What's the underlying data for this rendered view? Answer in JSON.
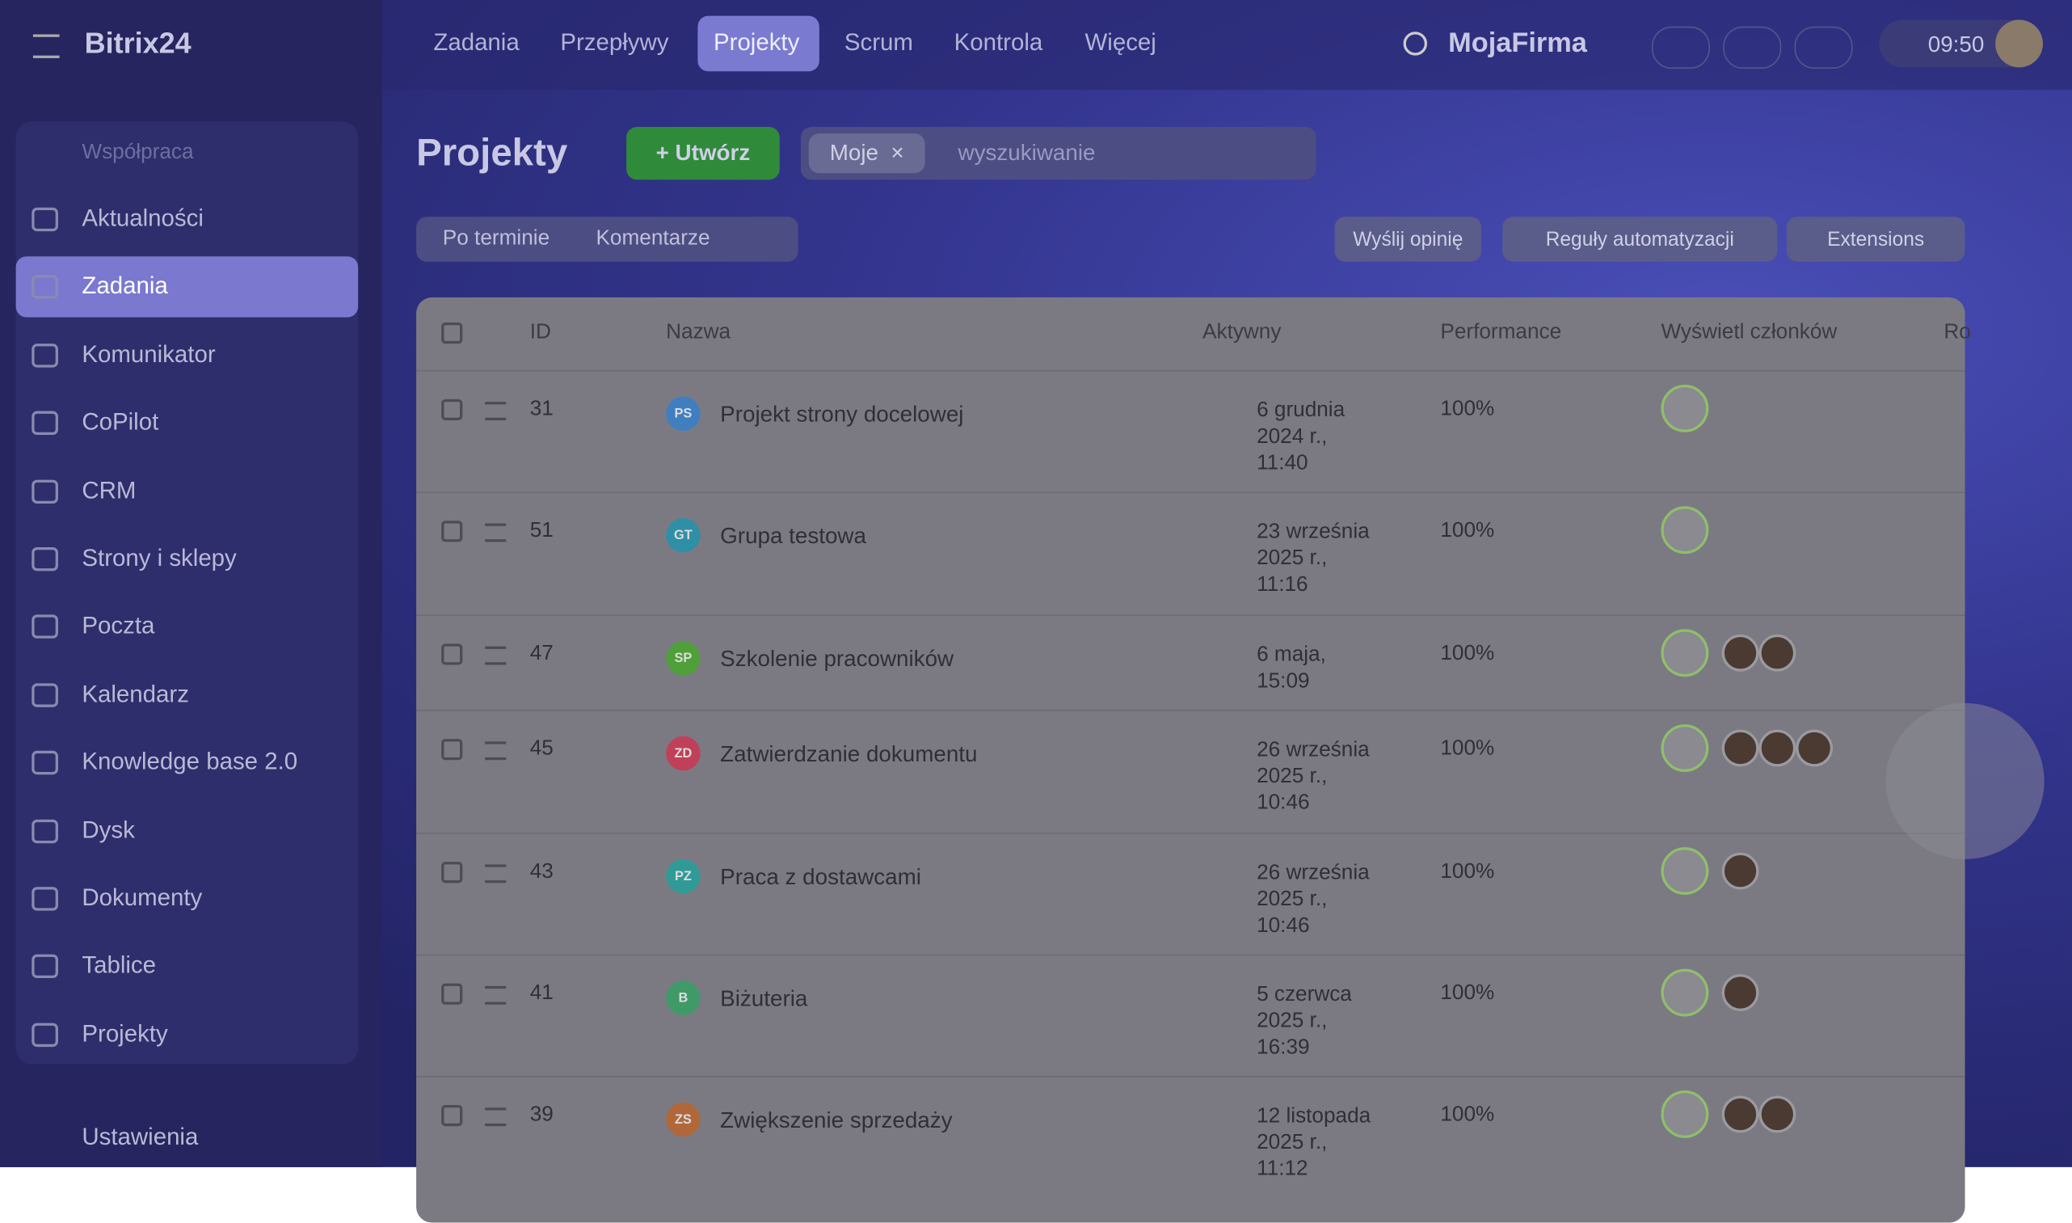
{
  "topbar": {
    "logo": "Bitrix24",
    "nav": [
      "Zadania",
      "Przepływy",
      "Projekty",
      "Scrum",
      "Kontrola",
      "Więcej"
    ],
    "active_nav": 2,
    "company": "MojaFirma",
    "time": "09:50"
  },
  "sidebar": {
    "section": "Współpraca",
    "items": [
      "Aktualności",
      "Zadania",
      "Komunikator",
      "CoPilot",
      "CRM",
      "Strony i sklepy",
      "Poczta",
      "Kalendarz",
      "Knowledge base 2.0",
      "Dysk",
      "Dokumenty",
      "Tablice",
      "Projekty"
    ],
    "active_item": 1,
    "settings": "Ustawienia"
  },
  "header": {
    "title": "Projekty",
    "create_button": "Utwórz",
    "filter_chip": "Moje",
    "search_placeholder": "wyszukiwanie"
  },
  "toolbar": {
    "left": [
      "Po terminie",
      "Komentarze"
    ],
    "right": [
      "Wyślij opinię",
      "Reguły automatyzacji",
      "Extensions"
    ]
  },
  "table": {
    "columns": [
      "ID",
      "Nazwa",
      "Aktywny",
      "Performance",
      "Wyświetl członków",
      "Ro"
    ],
    "rows": [
      {
        "id": "31",
        "badge": "PS",
        "badge_color": "#3f7fc0",
        "name": "Projekt strony docelowej",
        "active": "6 grudnia 2024 r., 11:40",
        "performance": "100%"
      },
      {
        "id": "51",
        "badge": "GT",
        "badge_color": "#2f8fa6",
        "name": "Grupa testowa",
        "active": "23 września 2025 r., 11:16",
        "performance": "100%"
      },
      {
        "id": "47",
        "badge": "SP",
        "badge_color": "#4f9f3a",
        "name": "Szkolenie pracowników",
        "active": "6 maja, 15:09",
        "performance": "100%"
      },
      {
        "id": "45",
        "badge": "ZD",
        "badge_color": "#c0405a",
        "name": "Zatwierdzanie dokumentu",
        "active": "26 września 2025 r., 10:46",
        "performance": "100%"
      },
      {
        "id": "43",
        "badge": "PZ",
        "badge_color": "#2f9a96",
        "name": "Praca z dostawcami",
        "active": "26 września 2025 r., 10:46",
        "performance": "100%"
      },
      {
        "id": "41",
        "badge": "B",
        "badge_color": "#3f9a68",
        "name": "Biżuteria",
        "active": "5 czerwca 2025 r., 16:39",
        "performance": "100%"
      },
      {
        "id": "39",
        "badge": "ZS",
        "badge_color": "#b0683a",
        "name": "Zwiększenie sprzedaży",
        "active": "12 listopada 2025 r., 11:12",
        "performance": "100%"
      }
    ]
  }
}
